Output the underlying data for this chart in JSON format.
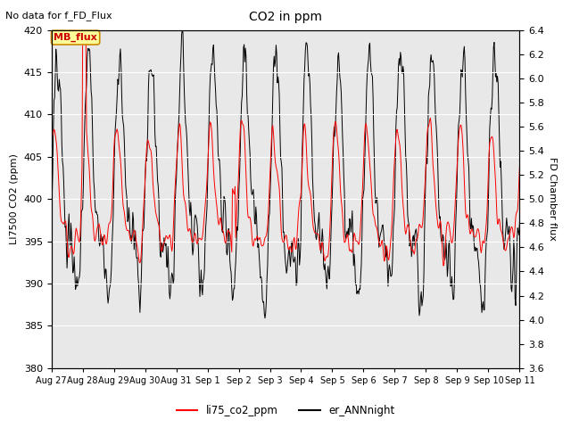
{
  "title": "CO2 in ppm",
  "subtitle": "No data for f_FD_Flux",
  "ylabel_left": "LI7500 CO2 (ppm)",
  "ylabel_right": "FD Chamber flux",
  "ylim_left": [
    380,
    420
  ],
  "ylim_right": [
    3.6,
    6.4
  ],
  "yticks_left": [
    380,
    385,
    390,
    395,
    400,
    405,
    410,
    415,
    420
  ],
  "yticks_right": [
    3.6,
    3.8,
    4.0,
    4.2,
    4.4,
    4.6,
    4.8,
    5.0,
    5.2,
    5.4,
    5.6,
    5.8,
    6.0,
    6.2,
    6.4
  ],
  "legend_labels": [
    "li75_co2_ppm",
    "er_ANNnight"
  ],
  "annotation": "MB_flux",
  "annotation_color": "#cc0000",
  "annotation_bg": "#ffff99",
  "annotation_border": "#cc8800",
  "x_tick_labels": [
    "Aug 27",
    "Aug 28",
    "Aug 29",
    "Aug 30",
    "Aug 31",
    "Sep 1",
    "Sep 2",
    "Sep 3",
    "Sep 4",
    "Sep 5",
    "Sep 6",
    "Sep 7",
    "Sep 8",
    "Sep 9",
    "Sep 10",
    "Sep 11"
  ],
  "n_days": 15,
  "points_per_day": 48,
  "plot_bg": "#e8e8e8",
  "line_lw": 0.7
}
